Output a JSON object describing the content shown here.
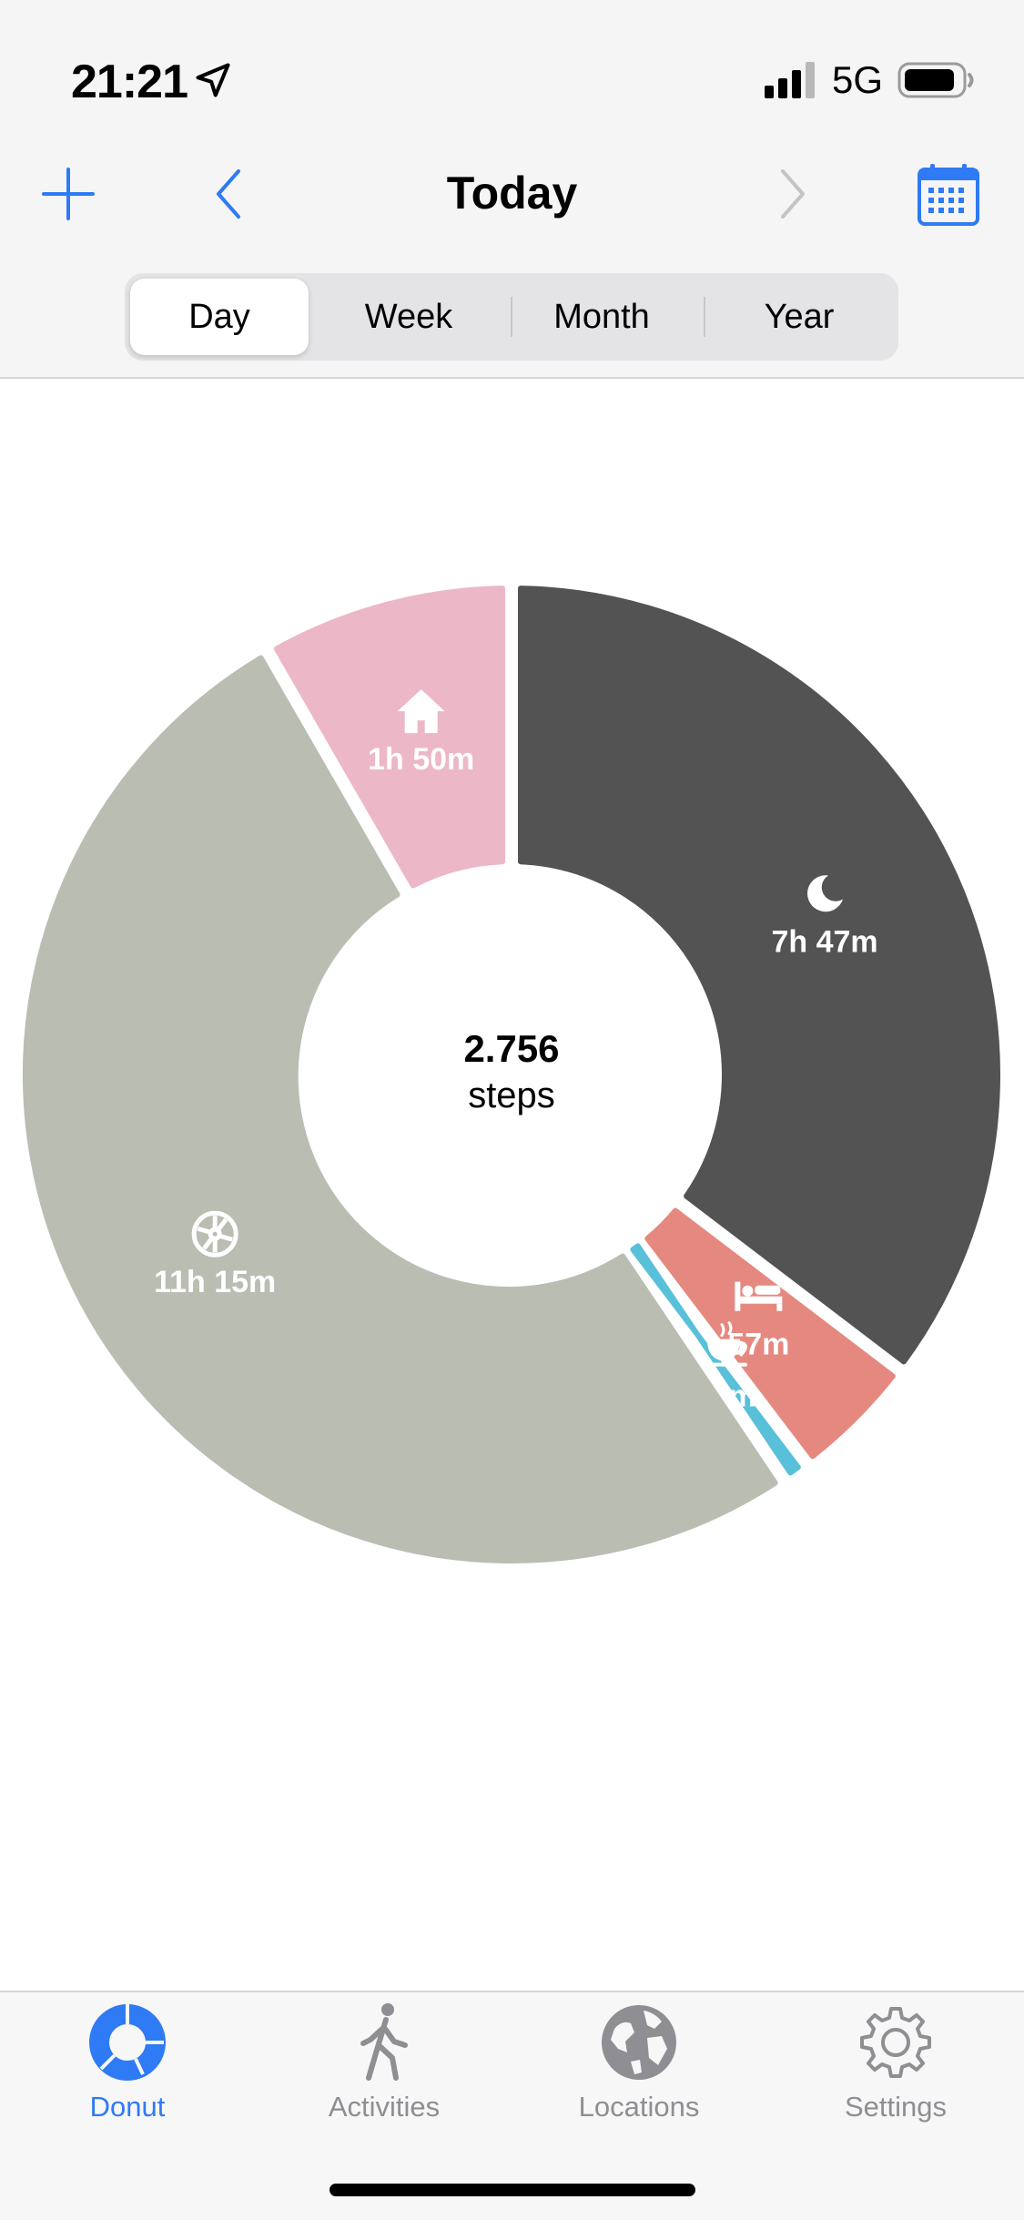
{
  "status_bar": {
    "time": "21:21",
    "network": "5G"
  },
  "nav": {
    "title": "Today",
    "add_icon": "plus-icon",
    "back_icon": "chevron-left-icon",
    "forward_icon": "chevron-right-icon",
    "calendar_icon": "calendar-icon"
  },
  "segments": [
    {
      "label": "Day",
      "selected": true
    },
    {
      "label": "Week",
      "selected": false
    },
    {
      "label": "Month",
      "selected": false
    },
    {
      "label": "Year",
      "selected": false
    }
  ],
  "center": {
    "value": "2.756",
    "unit": "steps"
  },
  "chart_data": {
    "type": "pie",
    "style": "donut",
    "slices": [
      {
        "label": "7h 47m",
        "icon": "moon-icon",
        "color": "#535353",
        "minutes": 467
      },
      {
        "label": "57m",
        "icon": "bed-icon",
        "color": "#e58980",
        "minutes": 57
      },
      {
        "label": "12m",
        "icon": "coffee-icon",
        "color": "#58c0d8",
        "minutes": 12
      },
      {
        "label": "11h 15m",
        "icon": "wheel-icon",
        "color": "#babdb2",
        "minutes": 675
      },
      {
        "label": "1h 50m",
        "icon": "home-icon",
        "color": "#ecb7c6",
        "minutes": 110
      }
    ]
  },
  "tabbar": {
    "items": [
      {
        "label": "Donut",
        "icon": "donut-icon",
        "active": true
      },
      {
        "label": "Activities",
        "icon": "walking-icon",
        "active": false
      },
      {
        "label": "Locations",
        "icon": "globe-icon",
        "active": false
      },
      {
        "label": "Settings",
        "icon": "gear-icon",
        "active": false
      }
    ]
  },
  "colors": {
    "accent": "#2f7af5",
    "inactive": "#8e8e93"
  }
}
